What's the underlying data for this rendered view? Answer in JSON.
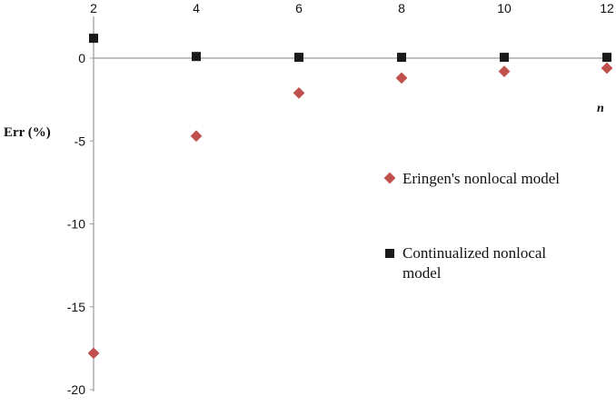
{
  "chart_data": {
    "type": "scatter",
    "ylabel": "Err (%)",
    "xlabel": "n",
    "x_ticks": [
      "2",
      "4",
      "6",
      "8",
      "10",
      "12"
    ],
    "y_ticks": [
      "0",
      "-5",
      "-10",
      "-15",
      "-20"
    ],
    "xlim": [
      2,
      12
    ],
    "ylim": [
      -20,
      2
    ],
    "x_axis_position": "top",
    "grid": false,
    "legend_position": "right",
    "series": [
      {
        "name": "Eringen's nonlocal model",
        "marker": "diamond",
        "color": "#c0504d",
        "x": [
          2,
          4,
          6,
          8,
          10,
          12
        ],
        "y": [
          -17.8,
          -4.7,
          -2.1,
          -1.2,
          -0.8,
          -0.6
        ]
      },
      {
        "name": "Continualized nonlocal model",
        "marker": "square",
        "color": "#1a1a1a",
        "x": [
          2,
          4,
          6,
          8,
          10,
          12
        ],
        "y": [
          1.2,
          0.1,
          0.05,
          0.05,
          0.05,
          0.05
        ]
      }
    ]
  },
  "legend": {
    "items": [
      {
        "lines": [
          "Eringen's nonlocal model"
        ]
      },
      {
        "lines": [
          "Continualized nonlocal model",
          "model"
        ]
      }
    ]
  }
}
